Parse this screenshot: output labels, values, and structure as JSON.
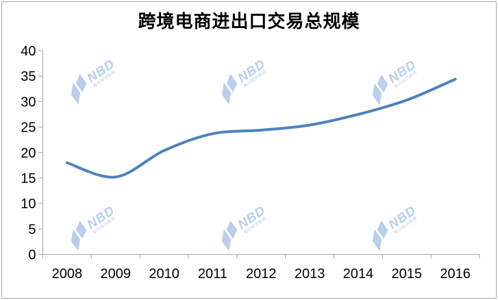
{
  "chart_data": {
    "type": "line",
    "title": "跨境电商进出口交易总规模",
    "categories": [
      "2008",
      "2009",
      "2010",
      "2011",
      "2012",
      "2013",
      "2014",
      "2015",
      "2016"
    ],
    "series": [
      {
        "name": "跨境电商进出口交易总规模",
        "values": [
          18,
          15.2,
          20.4,
          23.7,
          24.4,
          25.4,
          27.5,
          30.3,
          34.4
        ]
      }
    ],
    "xlabel": "",
    "ylabel": "",
    "ylim": [
      0,
      40
    ],
    "yticks": [
      0,
      5,
      10,
      15,
      20,
      25,
      30,
      35,
      40
    ],
    "grid": false,
    "legend_position": "none",
    "line_smoothed": true,
    "line_color": "#4f81bd",
    "axis_color": "#a6a6a6",
    "label_color": "#000000"
  },
  "watermark": {
    "text": "NBD",
    "subtext": "每日经济新闻",
    "color": "#b9cfec"
  }
}
